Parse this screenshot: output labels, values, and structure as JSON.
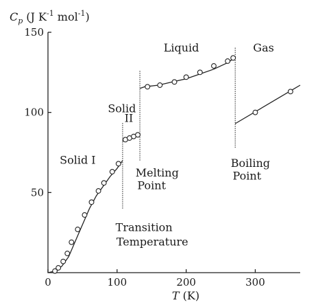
{
  "chart_data": {
    "type": "scatter",
    "ylabel": "C_p (J K^-1 mol^-1)",
    "ylabel_parts": {
      "var": "C",
      "sub": "p",
      "unit": "(J K",
      "exp1": "-1",
      "mid": " mol",
      "exp2": "-1",
      "close": ")"
    },
    "xlabel": "T (K)",
    "xlabel_parts": {
      "var": "T",
      "unit": " (K)"
    },
    "xlim": [
      0,
      365
    ],
    "ylim": [
      0,
      150
    ],
    "xticks": [
      0,
      100,
      200,
      300
    ],
    "yticks": [
      50,
      100,
      150
    ],
    "grid": false,
    "series": [
      {
        "points": [
          {
            "x": 10,
            "y": 1
          },
          {
            "x": 15,
            "y": 3
          },
          {
            "x": 22,
            "y": 7
          },
          {
            "x": 28,
            "y": 12
          },
          {
            "x": 34,
            "y": 19
          },
          {
            "x": 43,
            "y": 27
          },
          {
            "x": 53,
            "y": 36
          },
          {
            "x": 63,
            "y": 44
          },
          {
            "x": 73,
            "y": 51
          },
          {
            "x": 81,
            "y": 56
          },
          {
            "x": 93,
            "y": 63
          },
          {
            "x": 102,
            "y": 68
          },
          {
            "x": 112,
            "y": 83
          },
          {
            "x": 118,
            "y": 84
          },
          {
            "x": 124,
            "y": 85
          },
          {
            "x": 130,
            "y": 86
          },
          {
            "x": 144,
            "y": 116
          },
          {
            "x": 162,
            "y": 117
          },
          {
            "x": 183,
            "y": 119
          },
          {
            "x": 200,
            "y": 122
          },
          {
            "x": 220,
            "y": 125
          },
          {
            "x": 240,
            "y": 129
          },
          {
            "x": 260,
            "y": 132
          },
          {
            "x": 268,
            "y": 134
          },
          {
            "x": 300,
            "y": 100
          },
          {
            "x": 351,
            "y": 113
          }
        ]
      }
    ],
    "fit_segments": [
      [
        [
          0,
          0
        ],
        [
          10,
          1
        ],
        [
          20,
          4
        ],
        [
          30,
          10
        ],
        [
          40,
          20
        ],
        [
          50,
          30
        ],
        [
          60,
          40
        ],
        [
          70,
          48
        ],
        [
          80,
          54
        ],
        [
          90,
          60
        ],
        [
          100,
          65
        ],
        [
          108,
          70
        ]
      ],
      [
        [
          108,
          82
        ],
        [
          132,
          86
        ]
      ],
      [
        [
          133,
          115
        ],
        [
          140,
          116
        ],
        [
          160,
          117
        ],
        [
          180,
          119
        ],
        [
          200,
          121
        ],
        [
          220,
          124
        ],
        [
          240,
          127
        ],
        [
          260,
          131
        ],
        [
          270,
          134
        ]
      ],
      [
        [
          271,
          93
        ],
        [
          365,
          117
        ]
      ]
    ],
    "transitions": [
      {
        "x": 108,
        "y_low": 40,
        "y_high": 94
      },
      {
        "x": 133,
        "y_low": 70,
        "y_high": 126
      },
      {
        "x": 271,
        "y_low": 78,
        "y_high": 141
      }
    ],
    "annotations": [
      {
        "text": "Solid I",
        "x": 43,
        "y": 68
      },
      {
        "text": "Solid",
        "x": 107,
        "y": 100
      },
      {
        "text": "II",
        "x": 117,
        "y": 94
      },
      {
        "text": "Liquid",
        "x": 193,
        "y": 138
      },
      {
        "text": "Gas",
        "x": 312,
        "y": 138
      },
      {
        "text": "Melting",
        "x": 158,
        "y": 60
      },
      {
        "text": "Point",
        "x": 150,
        "y": 52
      },
      {
        "text": "Boiling",
        "x": 293,
        "y": 66
      },
      {
        "text": "Point",
        "x": 288,
        "y": 58
      },
      {
        "text": "Transition",
        "x": 139,
        "y": 26
      },
      {
        "text": "Temperature",
        "x": 151,
        "y": 17
      }
    ]
  }
}
